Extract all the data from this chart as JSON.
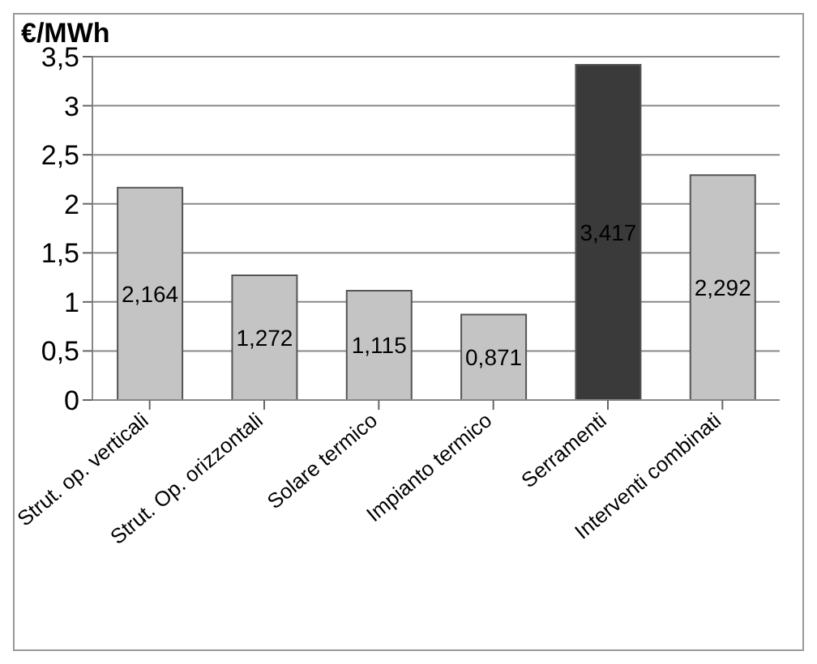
{
  "chart_data": {
    "type": "bar",
    "ylabel": "€/MWh",
    "categories": [
      "Strut. op. verticali",
      "Strut. Op. orizzontali",
      "Solare termico",
      "Impianto termico",
      "Serramenti",
      "Interventi combinati"
    ],
    "values": [
      2.164,
      1.272,
      1.115,
      0.871,
      3.417,
      2.292
    ],
    "colors": [
      "#c4c4c4",
      "#c4c4c4",
      "#c4c4c4",
      "#c4c4c4",
      "#3a3a3a",
      "#c4c4c4"
    ],
    "value_labels": [
      "2,164",
      "1,272",
      "1,115",
      "0,871",
      "3,417",
      "2,292"
    ],
    "ylim": [
      0,
      3.5
    ],
    "yticks": [
      0,
      {
        "value": 0.5,
        "label": "0,5"
      },
      1,
      {
        "value": 1.5,
        "label": "1,5"
      },
      2,
      {
        "value": 2.5,
        "label": "2,5"
      },
      3,
      {
        "value": 3.5,
        "label": "3,5"
      }
    ],
    "grid": "y"
  }
}
